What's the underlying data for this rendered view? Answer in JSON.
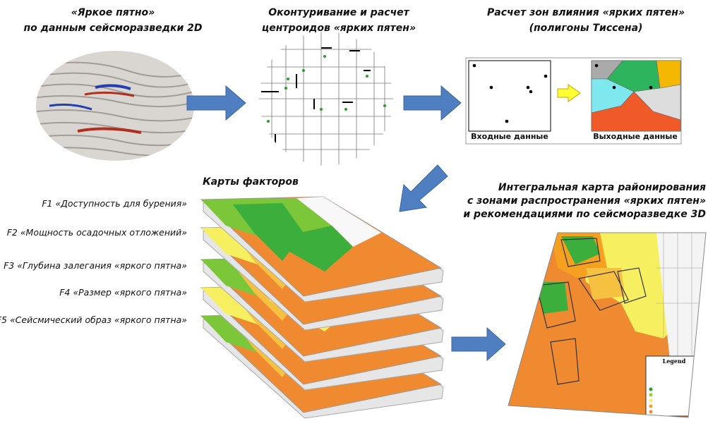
{
  "steps": [
    {
      "title_lines": [
        "«Яркое пятно»",
        "по данным сейсморазведки 2D"
      ]
    },
    {
      "title_lines": [
        "Оконтуривание и расчет",
        "центроидов «ярких пятен»"
      ]
    },
    {
      "title_lines": [
        "Расчет зон влияния «ярких пятен»",
        "(полигоны Тиссена)"
      ]
    }
  ],
  "thiessen": {
    "input_label": "Входные данные",
    "output_label": "Выходные данные"
  },
  "factor_maps": {
    "title": "Карты факторов",
    "factors": [
      "F1 «Доступность для бурения»",
      "F2 «Мощность осадочных отложений»",
      "F3 «Глубина залегания «яркого пятна»",
      "F4 «Размер «яркого пятна»",
      "F5 «Сейсмический образ «яркого пятна»"
    ]
  },
  "integral_map": {
    "title_lines": [
      "Интегральная карта районирования",
      "с зонами распространения «ярких пятен»",
      "и рекомендациями по сейсморазведке 3D"
    ],
    "legend_title": "Legend"
  }
}
